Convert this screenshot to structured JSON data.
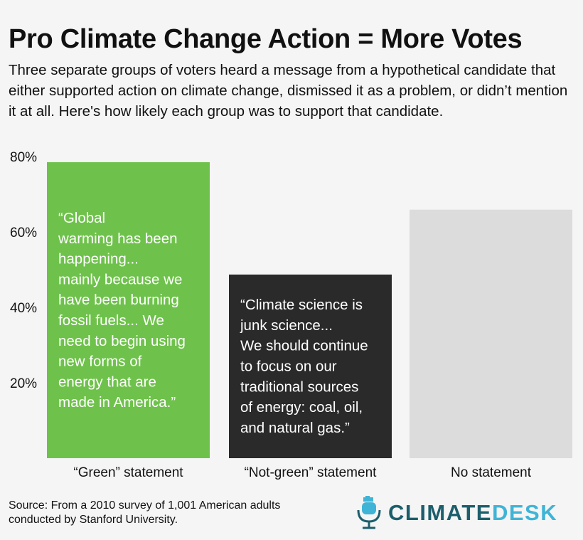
{
  "title": "Pro Climate Change Action = More Votes",
  "subtitle": "Three separate groups of voters heard a message from a hypothetical candidate that either supported action on climate change, dismissed it as a problem, or didn’t mention it at all. Here's how likely each group was to support that candidate.",
  "chart_data": {
    "type": "bar",
    "categories": [
      "“Green” statement",
      "“Not-green” statement",
      "No statement"
    ],
    "values": [
      78.5,
      48.7,
      65.9
    ],
    "ylim": [
      0,
      80
    ],
    "yticks": [
      "80%",
      "60%",
      "40%",
      "20%"
    ],
    "ytick_values": [
      80,
      60,
      40,
      20
    ],
    "bar_colors": [
      "#6ec24b",
      "#2a2a2a",
      "#dcdcdc"
    ],
    "annotations": [
      [
        "“Global",
        "warming has been",
        "happening...",
        "mainly because we",
        "have been burning",
        "fossil fuels... We",
        "need to begin using",
        "new forms of",
        "energy that are",
        "made in America.”"
      ],
      [
        "“Climate science is",
        "junk science...",
        "We should continue",
        "to focus on our",
        "traditional sources",
        "of energy: coal, oil,",
        "and natural gas.”"
      ],
      []
    ],
    "grid": false,
    "legend": "none"
  },
  "source": {
    "line1": "Source: From a 2010 survey of 1,001 American adults",
    "line2": "conducted by Stanford University."
  },
  "logo": {
    "part1": "CLIMATE",
    "part2": "DESK",
    "colors": {
      "primary": "#1c5e6c",
      "accent": "#3fb4d6"
    },
    "icon": "microphone-icon"
  }
}
